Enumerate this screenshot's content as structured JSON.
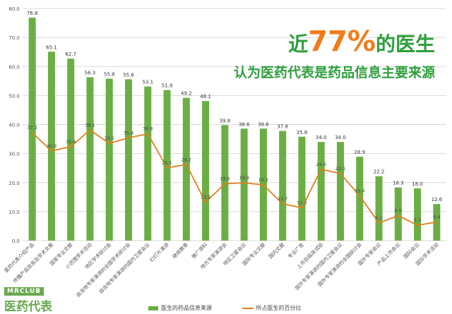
{
  "headline": {
    "prefix": "近",
    "percent": "77%",
    "suffix": "的医生",
    "line2": "认为医药代表是药品信息主要来源"
  },
  "logo": {
    "top": "MRCLUB",
    "bottom": "医药代表"
  },
  "colors": {
    "bar": "#6aae44",
    "line": "#e07f20",
    "headline": "#2f9e3c",
    "accent": "#f07c1a"
  },
  "chart_data": {
    "type": "bar",
    "categories": [
      "医药代表介绍产品",
      "传播产品信息及学术文章",
      "国家专业文献",
      "小范围学术活动",
      "地区学术研讨会",
      "由当地专家演讲的全国学术研讨会",
      "由当地专家演讲的国内卫星会议",
      "幻灯片演讲",
      "继续教育",
      "推广资料",
      "地方专家演讲会",
      "地区卫星会议",
      "国际专业文献",
      "国内文献",
      "专业广告",
      "上市后临床试验",
      "国外专家演讲的国内卫星会议",
      "国外专家演讲的全国研讨会",
      "国外专家会议",
      "产品上市会议",
      "国际会议",
      "国际学术活动"
    ],
    "series": [
      {
        "name": "医生的药品信息来源",
        "type": "bar",
        "values": [
          76.8,
          65.1,
          62.7,
          56.3,
          55.8,
          55.6,
          53.1,
          51.9,
          49.2,
          48.1,
          39.8,
          38.6,
          38.6,
          37.8,
          35.8,
          34.0,
          34.0,
          28.9,
          22.2,
          18.3,
          18.0,
          12.6
        ]
      },
      {
        "name": "所占医生的百分比",
        "type": "line",
        "values": [
          37.2,
          30.9,
          32.4,
          38.1,
          33.5,
          35.4,
          36.8,
          25.1,
          26.2,
          13.2,
          19.6,
          19.9,
          19.2,
          12.7,
          11.3,
          24.6,
          23.1,
          15.4,
          6.1,
          8.6,
          5.3,
          6.4
        ]
      }
    ],
    "y_ticks": [
      "0.0",
      "10.0",
      "20.0",
      "30.0",
      "40.0",
      "50.0",
      "60.0",
      "70.0",
      "80.0"
    ],
    "ylim": [
      0,
      80
    ],
    "grid": true,
    "legend_position": "bottom"
  }
}
